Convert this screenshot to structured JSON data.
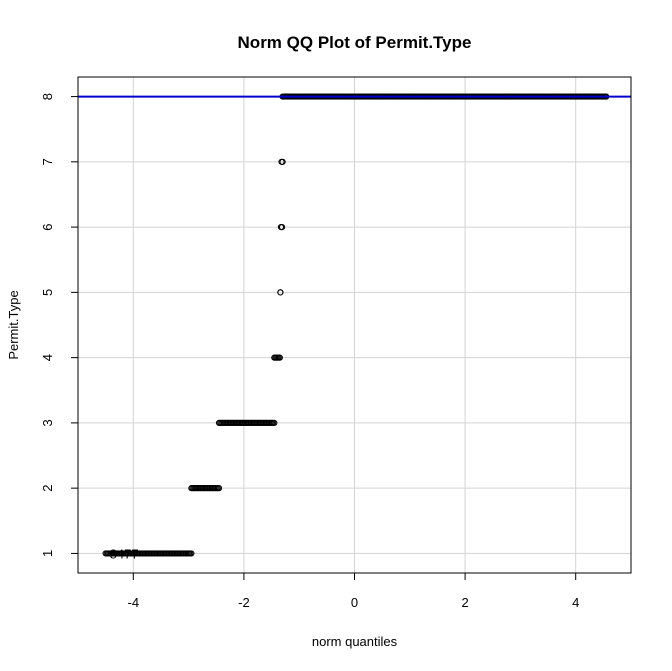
{
  "chart_data": {
    "type": "scatter",
    "title": "Norm QQ Plot of Permit.Type",
    "xlabel": "norm quantiles",
    "ylabel": "Permit.Type",
    "xlim": [
      -5,
      5
    ],
    "ylim": [
      0.7,
      8.3
    ],
    "xticks": [
      -4,
      -2,
      0,
      2,
      4
    ],
    "yticks": [
      1,
      2,
      3,
      4,
      5,
      6,
      7,
      8
    ],
    "grid": true,
    "point_color": "#000000",
    "reference_line": {
      "type": "horizontal",
      "y": 8,
      "color": "#0000cc"
    },
    "groups": [
      {
        "y": 1,
        "x_min": -4.5,
        "x_max": -2.95
      },
      {
        "y": 2,
        "x_min": -2.95,
        "x_max": -2.45
      },
      {
        "y": 3,
        "x_min": -2.45,
        "x_max": -1.45
      },
      {
        "y": 4,
        "x_min": -1.45,
        "x_max": -1.35
      },
      {
        "y": 5,
        "x_min": -1.34,
        "x_max": -1.34
      },
      {
        "y": 6,
        "x_min": -1.33,
        "x_max": -1.31
      },
      {
        "y": 7,
        "x_min": -1.32,
        "x_max": -1.3
      },
      {
        "y": 8,
        "x_min": -1.3,
        "x_max": 4.55
      }
    ],
    "labeled_points": [
      {
        "label": "8477",
        "x": -4.5,
        "y": 1
      }
    ]
  }
}
